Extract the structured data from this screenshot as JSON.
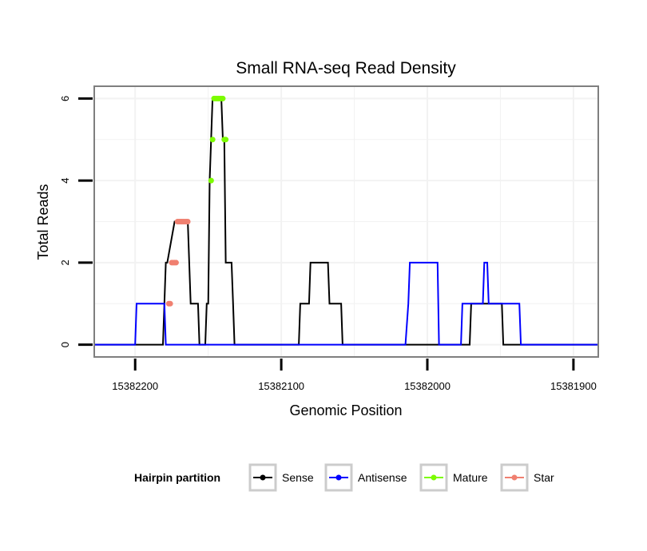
{
  "chart_data": {
    "type": "line",
    "title": "Small RNA-seq Read Density",
    "xlabel": "Genomic Position",
    "ylabel": "Total Reads",
    "xlim": [
      15382228,
      15381883
    ],
    "ylim": [
      -0.3,
      6.3
    ],
    "x_reversed": true,
    "x_ticks": [
      15382200,
      15382100,
      15382000,
      15381900
    ],
    "y_ticks": [
      0,
      2,
      4,
      6
    ],
    "legend": {
      "title": "Hairpin partition",
      "position": "bottom",
      "entries": [
        {
          "name": "Sense",
          "color": "#000000"
        },
        {
          "name": "Antisense",
          "color": "#0000ff"
        },
        {
          "name": "Mature",
          "color": "#7cfc00"
        },
        {
          "name": "Star",
          "color": "#f08070"
        }
      ]
    },
    "series": [
      {
        "name": "Sense",
        "color": "#000000",
        "points": [
          [
            15382228,
            0
          ],
          [
            15382181,
            0
          ],
          [
            15382180,
            1
          ],
          [
            15382179,
            2
          ],
          [
            15382178,
            2
          ],
          [
            15382173,
            3
          ],
          [
            15382164,
            3
          ],
          [
            15382163,
            2
          ],
          [
            15382162,
            1
          ],
          [
            15382157,
            1
          ],
          [
            15382156,
            0
          ],
          [
            15382152,
            0
          ],
          [
            15382151,
            1
          ],
          [
            15382150,
            1
          ],
          [
            15382149,
            4
          ],
          [
            15382148,
            5
          ],
          [
            15382147,
            6
          ],
          [
            15382141,
            6
          ],
          [
            15382140,
            5
          ],
          [
            15382139,
            5
          ],
          [
            15382138,
            2
          ],
          [
            15382134,
            2
          ],
          [
            15382133,
            1
          ],
          [
            15382132,
            0
          ],
          [
            15382088,
            0
          ],
          [
            15382087,
            1
          ],
          [
            15382081,
            1
          ],
          [
            15382080,
            2
          ],
          [
            15382068,
            2
          ],
          [
            15382067,
            1
          ],
          [
            15382059,
            1
          ],
          [
            15382058,
            0
          ],
          [
            15381971,
            0
          ],
          [
            15381970,
            1
          ],
          [
            15381962,
            1
          ],
          [
            15381961,
            1
          ],
          [
            15381960,
            1
          ],
          [
            15381950,
            1
          ],
          [
            15381949,
            1
          ],
          [
            15381948,
            0
          ],
          [
            15381883,
            0
          ]
        ]
      },
      {
        "name": "Antisense",
        "color": "#0000ff",
        "points": [
          [
            15382228,
            0
          ],
          [
            15382200,
            0
          ],
          [
            15382199,
            1
          ],
          [
            15382180,
            1
          ],
          [
            15382179,
            0
          ],
          [
            15382015,
            0
          ],
          [
            15382013,
            1
          ],
          [
            15382012,
            2
          ],
          [
            15381993,
            2
          ],
          [
            15381992,
            0
          ],
          [
            15381977,
            0
          ],
          [
            15381976,
            1
          ],
          [
            15381962,
            1
          ],
          [
            15381961,
            2
          ],
          [
            15381959,
            2
          ],
          [
            15381958,
            1
          ],
          [
            15381937,
            1
          ],
          [
            15381936,
            0
          ],
          [
            15381883,
            0
          ]
        ]
      }
    ],
    "highlights": [
      {
        "name": "Mature",
        "color": "#7cfc00",
        "points": [
          [
            15382148,
            4
          ],
          [
            15382147,
            5
          ],
          [
            15382146,
            6
          ],
          [
            15382145,
            6
          ],
          [
            15382144,
            6
          ],
          [
            15382143,
            6
          ],
          [
            15382142,
            6
          ],
          [
            15382141,
            6
          ],
          [
            15382140,
            6
          ],
          [
            15382139,
            5
          ],
          [
            15382138,
            5
          ]
        ]
      },
      {
        "name": "Star",
        "color": "#f08070",
        "points": [
          [
            15382177,
            1
          ],
          [
            15382176,
            1
          ],
          [
            15382175,
            2
          ],
          [
            15382174,
            2
          ],
          [
            15382173,
            2
          ],
          [
            15382172,
            2
          ],
          [
            15382171,
            3
          ],
          [
            15382170,
            3
          ],
          [
            15382169,
            3
          ],
          [
            15382168,
            3
          ],
          [
            15382167,
            3
          ],
          [
            15382166,
            3
          ],
          [
            15382165,
            3
          ],
          [
            15382164,
            3
          ]
        ]
      }
    ]
  }
}
